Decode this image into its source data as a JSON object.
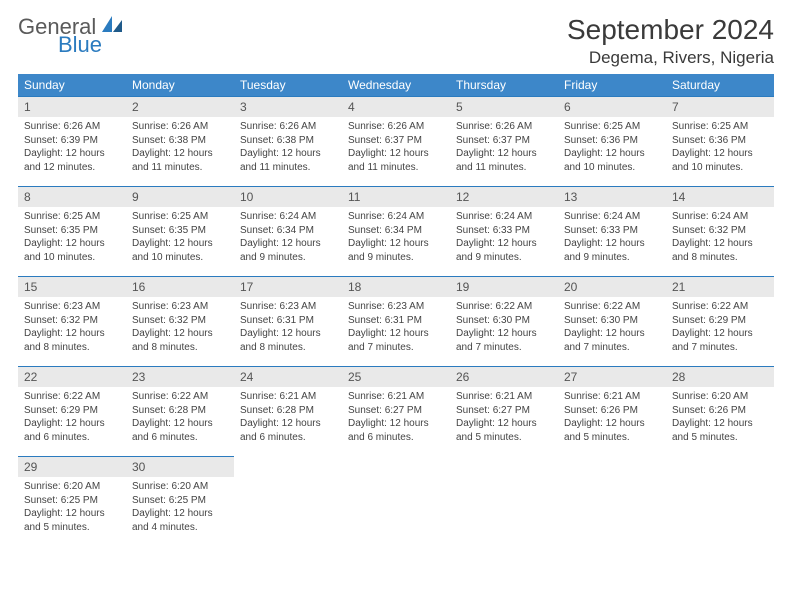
{
  "logo": {
    "general": "General",
    "blue": "Blue"
  },
  "title": "September 2024",
  "location": "Degema, Rivers, Nigeria",
  "colors": {
    "header_bg": "#3d87c9",
    "header_text": "#ffffff",
    "daynum_bg": "#e9e9e9",
    "daynum_border": "#2b7bbf",
    "logo_gray": "#5a5a5a",
    "logo_blue": "#2b7bbf"
  },
  "weekdays": [
    "Sunday",
    "Monday",
    "Tuesday",
    "Wednesday",
    "Thursday",
    "Friday",
    "Saturday"
  ],
  "weeks": [
    [
      {
        "n": "1",
        "sr": "6:26 AM",
        "ss": "6:39 PM",
        "dl": "12 hours and 12 minutes."
      },
      {
        "n": "2",
        "sr": "6:26 AM",
        "ss": "6:38 PM",
        "dl": "12 hours and 11 minutes."
      },
      {
        "n": "3",
        "sr": "6:26 AM",
        "ss": "6:38 PM",
        "dl": "12 hours and 11 minutes."
      },
      {
        "n": "4",
        "sr": "6:26 AM",
        "ss": "6:37 PM",
        "dl": "12 hours and 11 minutes."
      },
      {
        "n": "5",
        "sr": "6:26 AM",
        "ss": "6:37 PM",
        "dl": "12 hours and 11 minutes."
      },
      {
        "n": "6",
        "sr": "6:25 AM",
        "ss": "6:36 PM",
        "dl": "12 hours and 10 minutes."
      },
      {
        "n": "7",
        "sr": "6:25 AM",
        "ss": "6:36 PM",
        "dl": "12 hours and 10 minutes."
      }
    ],
    [
      {
        "n": "8",
        "sr": "6:25 AM",
        "ss": "6:35 PM",
        "dl": "12 hours and 10 minutes."
      },
      {
        "n": "9",
        "sr": "6:25 AM",
        "ss": "6:35 PM",
        "dl": "12 hours and 10 minutes."
      },
      {
        "n": "10",
        "sr": "6:24 AM",
        "ss": "6:34 PM",
        "dl": "12 hours and 9 minutes."
      },
      {
        "n": "11",
        "sr": "6:24 AM",
        "ss": "6:34 PM",
        "dl": "12 hours and 9 minutes."
      },
      {
        "n": "12",
        "sr": "6:24 AM",
        "ss": "6:33 PM",
        "dl": "12 hours and 9 minutes."
      },
      {
        "n": "13",
        "sr": "6:24 AM",
        "ss": "6:33 PM",
        "dl": "12 hours and 9 minutes."
      },
      {
        "n": "14",
        "sr": "6:24 AM",
        "ss": "6:32 PM",
        "dl": "12 hours and 8 minutes."
      }
    ],
    [
      {
        "n": "15",
        "sr": "6:23 AM",
        "ss": "6:32 PM",
        "dl": "12 hours and 8 minutes."
      },
      {
        "n": "16",
        "sr": "6:23 AM",
        "ss": "6:32 PM",
        "dl": "12 hours and 8 minutes."
      },
      {
        "n": "17",
        "sr": "6:23 AM",
        "ss": "6:31 PM",
        "dl": "12 hours and 8 minutes."
      },
      {
        "n": "18",
        "sr": "6:23 AM",
        "ss": "6:31 PM",
        "dl": "12 hours and 7 minutes."
      },
      {
        "n": "19",
        "sr": "6:22 AM",
        "ss": "6:30 PM",
        "dl": "12 hours and 7 minutes."
      },
      {
        "n": "20",
        "sr": "6:22 AM",
        "ss": "6:30 PM",
        "dl": "12 hours and 7 minutes."
      },
      {
        "n": "21",
        "sr": "6:22 AM",
        "ss": "6:29 PM",
        "dl": "12 hours and 7 minutes."
      }
    ],
    [
      {
        "n": "22",
        "sr": "6:22 AM",
        "ss": "6:29 PM",
        "dl": "12 hours and 6 minutes."
      },
      {
        "n": "23",
        "sr": "6:22 AM",
        "ss": "6:28 PM",
        "dl": "12 hours and 6 minutes."
      },
      {
        "n": "24",
        "sr": "6:21 AM",
        "ss": "6:28 PM",
        "dl": "12 hours and 6 minutes."
      },
      {
        "n": "25",
        "sr": "6:21 AM",
        "ss": "6:27 PM",
        "dl": "12 hours and 6 minutes."
      },
      {
        "n": "26",
        "sr": "6:21 AM",
        "ss": "6:27 PM",
        "dl": "12 hours and 5 minutes."
      },
      {
        "n": "27",
        "sr": "6:21 AM",
        "ss": "6:26 PM",
        "dl": "12 hours and 5 minutes."
      },
      {
        "n": "28",
        "sr": "6:20 AM",
        "ss": "6:26 PM",
        "dl": "12 hours and 5 minutes."
      }
    ],
    [
      {
        "n": "29",
        "sr": "6:20 AM",
        "ss": "6:25 PM",
        "dl": "12 hours and 5 minutes."
      },
      {
        "n": "30",
        "sr": "6:20 AM",
        "ss": "6:25 PM",
        "dl": "12 hours and 4 minutes."
      },
      null,
      null,
      null,
      null,
      null
    ]
  ],
  "labels": {
    "sunrise": "Sunrise:",
    "sunset": "Sunset:",
    "daylight": "Daylight:"
  }
}
